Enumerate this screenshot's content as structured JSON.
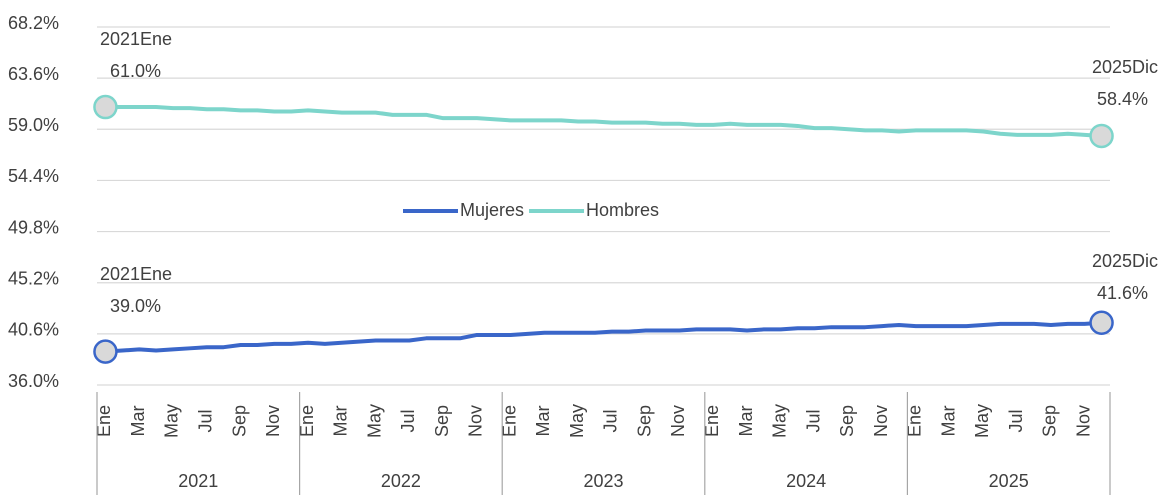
{
  "chart_data": {
    "type": "line",
    "categories": [
      "Ene",
      null,
      "Mar",
      null,
      "May",
      null,
      "Jul",
      null,
      "Sep",
      null,
      "Nov",
      null,
      "Ene",
      null,
      "Mar",
      null,
      "May",
      null,
      "Jul",
      null,
      "Sep",
      null,
      "Nov",
      null,
      "Ene",
      null,
      "Mar",
      null,
      "May",
      null,
      "Jul",
      null,
      "Sep",
      null,
      "Nov",
      null,
      "Ene",
      null,
      "Mar",
      null,
      "May",
      null,
      "Jul",
      null,
      "Sep",
      null,
      "Nov",
      null,
      "Ene",
      null,
      "Mar",
      null,
      "May",
      null,
      "Jul",
      null,
      "Sep",
      null,
      "Nov",
      null
    ],
    "year_labels": [
      "2021",
      "2022",
      "2023",
      "2024",
      "2025"
    ],
    "annotations": [
      "2021Ene",
      "2025Dic"
    ],
    "series": [
      {
        "name": "Mujeres",
        "color": "#3a66c9",
        "values": [
          39.0,
          39.1,
          39.2,
          39.1,
          39.2,
          39.3,
          39.4,
          39.4,
          39.6,
          39.6,
          39.7,
          39.7,
          39.8,
          39.7,
          39.8,
          39.9,
          40.0,
          40.0,
          40.0,
          40.2,
          40.2,
          40.2,
          40.5,
          40.5,
          40.5,
          40.6,
          40.7,
          40.7,
          40.7,
          40.7,
          40.8,
          40.8,
          40.9,
          40.9,
          40.9,
          41.0,
          41.0,
          41.0,
          40.9,
          41.0,
          41.0,
          41.1,
          41.1,
          41.2,
          41.2,
          41.2,
          41.3,
          41.4,
          41.3,
          41.3,
          41.3,
          41.3,
          41.4,
          41.5,
          41.5,
          41.5,
          41.4,
          41.5,
          41.5,
          41.6
        ],
        "value_labels": [
          "39.0%",
          null,
          null,
          null,
          null,
          null,
          null,
          null,
          null,
          null,
          null,
          null,
          null,
          null,
          null,
          null,
          null,
          null,
          null,
          null,
          null,
          null,
          null,
          null,
          null,
          null,
          null,
          null,
          null,
          null,
          null,
          null,
          null,
          null,
          null,
          null,
          null,
          null,
          null,
          null,
          null,
          null,
          null,
          null,
          null,
          null,
          null,
          null,
          null,
          null,
          null,
          null,
          null,
          null,
          null,
          null,
          null,
          null,
          null,
          "41.6%"
        ]
      },
      {
        "name": "Hombres",
        "color": "#7dd5cb",
        "values": [
          61.0,
          61.0,
          61.0,
          61.0,
          60.9,
          60.9,
          60.8,
          60.8,
          60.7,
          60.7,
          60.6,
          60.6,
          60.7,
          60.6,
          60.5,
          60.5,
          60.5,
          60.3,
          60.3,
          60.3,
          60.0,
          60.0,
          60.0,
          59.9,
          59.8,
          59.8,
          59.8,
          59.8,
          59.7,
          59.7,
          59.6,
          59.6,
          59.6,
          59.5,
          59.5,
          59.4,
          59.4,
          59.5,
          59.4,
          59.4,
          59.4,
          59.3,
          59.1,
          59.1,
          59.0,
          58.9,
          58.9,
          58.8,
          58.9,
          58.9,
          58.9,
          58.9,
          58.8,
          58.6,
          58.5,
          58.5,
          58.5,
          58.6,
          58.5,
          58.4
        ],
        "value_labels": [
          "61.0%",
          null,
          null,
          null,
          null,
          null,
          null,
          null,
          null,
          null,
          null,
          null,
          null,
          null,
          null,
          null,
          null,
          null,
          null,
          null,
          null,
          null,
          null,
          null,
          null,
          null,
          null,
          null,
          null,
          null,
          null,
          null,
          null,
          null,
          null,
          null,
          null,
          null,
          null,
          null,
          null,
          null,
          null,
          null,
          null,
          null,
          null,
          null,
          null,
          null,
          null,
          null,
          null,
          null,
          null,
          null,
          null,
          null,
          null,
          "58.4%"
        ]
      }
    ],
    "ylim": [
      36.0,
      68.2
    ],
    "yticks": [
      {
        "value": 36.0,
        "label": "36.0%"
      },
      {
        "value": 40.6,
        "label": "40.6%"
      },
      {
        "value": 45.2,
        "label": "45.2%"
      },
      {
        "value": 49.8,
        "label": "49.8%"
      },
      {
        "value": 54.4,
        "label": "54.4%"
      },
      {
        "value": 59.0,
        "label": "59.0%"
      },
      {
        "value": 63.6,
        "label": "63.6%"
      },
      {
        "value": 68.2,
        "label": "68.2%"
      }
    ],
    "grid": true,
    "legend": "center"
  }
}
